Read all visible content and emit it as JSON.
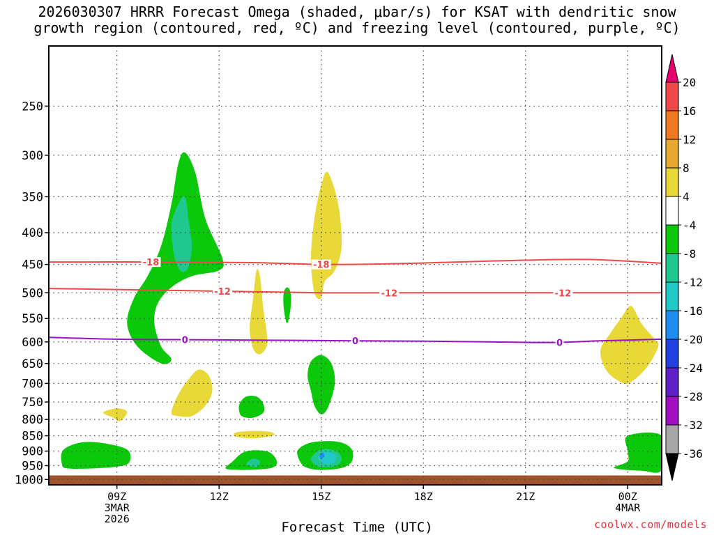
{
  "chart_data": {
    "type": "heatmap",
    "title": "2026030307 HRRR Forecast Omega (shaded, μbar/s) for KSAT with dendritic snow growth region (contoured, red, ºC) and freezing level (contoured, purple, ºC)",
    "title_lines": [
      "2026030307 HRRR Forecast Omega (shaded, μbar/s) for KSAT with dendritic snow",
      "growth region (contoured, red, ºC) and freezing level (contoured, purple, ºC)"
    ],
    "xlabel": "Forecast Time (UTC)",
    "ylabel": "",
    "x_units": "hours since 2026-03-03 07Z",
    "xlim": [
      0,
      18
    ],
    "ylim": [
      1020,
      200
    ],
    "y_ticks": [
      250,
      300,
      350,
      400,
      450,
      500,
      550,
      600,
      650,
      700,
      750,
      800,
      850,
      900,
      950,
      1000
    ],
    "x_ticks": [
      {
        "x": 2,
        "lines": [
          "09Z",
          "3MAR",
          "2026"
        ]
      },
      {
        "x": 5,
        "lines": [
          "12Z"
        ]
      },
      {
        "x": 8,
        "lines": [
          "15Z"
        ]
      },
      {
        "x": 11,
        "lines": [
          "18Z"
        ]
      },
      {
        "x": 14,
        "lines": [
          "21Z"
        ]
      },
      {
        "x": 17,
        "lines": [
          "00Z",
          "4MAR"
        ]
      }
    ],
    "grid": true,
    "colorbar": {
      "units": "μbar/s",
      "labels": [
        "20",
        "16",
        "12",
        "8",
        "4",
        "-4",
        "-8",
        "-12",
        "-16",
        "-20",
        "-24",
        "-28",
        "-32",
        "-36"
      ],
      "bins": [
        {
          "color": "#e8006e"
        },
        {
          "color": "#f04848"
        },
        {
          "color": "#f07820"
        },
        {
          "color": "#e8a830"
        },
        {
          "color": "#e8d838"
        },
        {
          "color": "#ffffff"
        },
        {
          "color": "#0bc80b"
        },
        {
          "color": "#20c890"
        },
        {
          "color": "#20c8c8"
        },
        {
          "color": "#1e8cf0"
        },
        {
          "color": "#2040e0"
        },
        {
          "color": "#6020c8"
        },
        {
          "color": "#a010c0"
        },
        {
          "color": "#a8a8a8"
        },
        {
          "color": "#000000"
        }
      ]
    },
    "contours": [
      {
        "name": "-18C isotherm",
        "color": "#f04848",
        "label": "-18",
        "x": [
          0,
          3,
          6,
          8,
          10,
          12,
          14,
          16,
          18
        ],
        "y": [
          446,
          446,
          447,
          450,
          449,
          446,
          443,
          442,
          448
        ],
        "label_x": [
          3.0,
          8.0
        ]
      },
      {
        "name": "-12C isotherm",
        "color": "#f04848",
        "label": "-12",
        "x": [
          0,
          2,
          5,
          8,
          11,
          14,
          16,
          18
        ],
        "y": [
          492,
          494,
          497,
          500,
          500,
          500,
          500,
          500
        ],
        "label_x": [
          5.1,
          10.0,
          15.1
        ]
      },
      {
        "name": "0C freezing level",
        "color": "#9a10c8",
        "label": "0",
        "x": [
          0,
          2,
          4,
          6,
          8,
          10,
          12,
          14,
          15,
          16,
          17,
          18
        ],
        "y": [
          590,
          594,
          595,
          596,
          597,
          598,
          599,
          601,
          601,
          598,
          596,
          594
        ],
        "label_x": [
          4.0,
          9.0,
          15.0
        ]
      }
    ],
    "terrain": {
      "color": "#a0522d",
      "pressure_top": 985
    },
    "shading": [
      {
        "level": "-4 to -8",
        "color": "#0bc80b",
        "points": [
          [
            3.3,
            650
          ],
          [
            2.6,
            610
          ],
          [
            2.3,
            560
          ],
          [
            2.5,
            510
          ],
          [
            2.9,
            470
          ],
          [
            3.3,
            420
          ],
          [
            3.6,
            360
          ],
          [
            3.8,
            310
          ],
          [
            4.0,
            297
          ],
          [
            4.3,
            320
          ],
          [
            4.6,
            380
          ],
          [
            5.1,
            440
          ],
          [
            5.0,
            460
          ],
          [
            4.2,
            470
          ],
          [
            3.6,
            490
          ],
          [
            3.2,
            520
          ],
          [
            3.1,
            560
          ],
          [
            3.3,
            610
          ],
          [
            3.6,
            640
          ]
        ]
      },
      {
        "level": "-8 to -12",
        "color": "#20c890",
        "points": [
          [
            3.6,
            390
          ],
          [
            3.8,
            360
          ],
          [
            4.0,
            350
          ],
          [
            4.1,
            380
          ],
          [
            4.2,
            420
          ],
          [
            4.1,
            455
          ],
          [
            3.9,
            462
          ],
          [
            3.7,
            440
          ]
        ]
      },
      {
        "level": "4 to 8",
        "color": "#e8d838",
        "points": [
          [
            7.8,
            500
          ],
          [
            7.7,
            440
          ],
          [
            7.8,
            380
          ],
          [
            8.0,
            335
          ],
          [
            8.2,
            320
          ],
          [
            8.5,
            360
          ],
          [
            8.6,
            420
          ],
          [
            8.4,
            460
          ],
          [
            8.1,
            480
          ],
          [
            8.0,
            510
          ]
        ]
      },
      {
        "level": "4 to 8",
        "color": "#e8d838",
        "points": [
          [
            6.0,
            615
          ],
          [
            5.9,
            570
          ],
          [
            6.0,
            510
          ],
          [
            6.1,
            460
          ],
          [
            6.2,
            470
          ],
          [
            6.3,
            530
          ],
          [
            6.4,
            580
          ],
          [
            6.4,
            610
          ],
          [
            6.2,
            628
          ]
        ]
      },
      {
        "level": "-4 to -8",
        "color": "#0bc80b",
        "points": [
          [
            7.0,
            490
          ],
          [
            7.1,
            500
          ],
          [
            7.1,
            530
          ],
          [
            7.0,
            560
          ],
          [
            6.9,
            530
          ],
          [
            6.9,
            500
          ]
        ]
      },
      {
        "level": "4 to 8",
        "color": "#e8d838",
        "points": [
          [
            3.6,
            780
          ],
          [
            3.8,
            730
          ],
          [
            4.1,
            690
          ],
          [
            4.4,
            665
          ],
          [
            4.7,
            680
          ],
          [
            4.8,
            720
          ],
          [
            4.6,
            760
          ],
          [
            4.2,
            790
          ],
          [
            3.8,
            790
          ]
        ]
      },
      {
        "level": "4 to 8",
        "color": "#e8d838",
        "points": [
          [
            1.6,
            780
          ],
          [
            2.0,
            768
          ],
          [
            2.3,
            778
          ],
          [
            2.1,
            805
          ],
          [
            1.9,
            795
          ]
        ]
      },
      {
        "level": "-4 to -8",
        "color": "#0bc80b",
        "points": [
          [
            7.7,
            720
          ],
          [
            7.6,
            680
          ],
          [
            7.7,
            645
          ],
          [
            8.0,
            630
          ],
          [
            8.3,
            650
          ],
          [
            8.4,
            700
          ],
          [
            8.2,
            765
          ],
          [
            8.0,
            785
          ],
          [
            7.8,
            760
          ]
        ]
      },
      {
        "level": "-4 to -8",
        "color": "#0bc80b",
        "points": [
          [
            5.6,
            780
          ],
          [
            5.6,
            755
          ],
          [
            5.8,
            735
          ],
          [
            6.1,
            735
          ],
          [
            6.3,
            755
          ],
          [
            6.3,
            780
          ],
          [
            6.0,
            795
          ],
          [
            5.7,
            792
          ]
        ]
      },
      {
        "level": "4 to 8",
        "color": "#e8d838",
        "points": [
          [
            5.5,
            840
          ],
          [
            6.0,
            835
          ],
          [
            6.5,
            838
          ],
          [
            6.6,
            848
          ],
          [
            6.1,
            858
          ],
          [
            5.5,
            853
          ]
        ]
      },
      {
        "level": "-4 to -8",
        "color": "#0bc80b",
        "points": [
          [
            0.4,
            950
          ],
          [
            0.4,
            900
          ],
          [
            0.8,
            875
          ],
          [
            1.3,
            870
          ],
          [
            1.9,
            880
          ],
          [
            2.3,
            895
          ],
          [
            2.4,
            920
          ],
          [
            2.3,
            945
          ],
          [
            1.9,
            955
          ],
          [
            1.2,
            960
          ],
          [
            0.6,
            960
          ]
        ]
      },
      {
        "level": "-4 to -8",
        "color": "#0bc80b",
        "points": [
          [
            5.2,
            960
          ],
          [
            5.4,
            935
          ],
          [
            5.7,
            905
          ],
          [
            6.1,
            897
          ],
          [
            6.5,
            905
          ],
          [
            6.7,
            935
          ],
          [
            6.6,
            955
          ],
          [
            6.3,
            962
          ],
          [
            5.7,
            965
          ]
        ]
      },
      {
        "level": "-8 to -12",
        "color": "#20c890",
        "points": [
          [
            5.8,
            945
          ],
          [
            6.0,
            925
          ],
          [
            6.2,
            935
          ],
          [
            6.1,
            955
          ]
        ]
      },
      {
        "level": "-4 to -8",
        "color": "#0bc80b",
        "points": [
          [
            7.4,
            940
          ],
          [
            7.3,
            900
          ],
          [
            7.6,
            875
          ],
          [
            8.1,
            867
          ],
          [
            8.6,
            872
          ],
          [
            8.9,
            895
          ],
          [
            8.9,
            935
          ],
          [
            8.6,
            958
          ],
          [
            8.0,
            965
          ],
          [
            7.6,
            958
          ]
        ]
      },
      {
        "level": "-8 to -12",
        "color": "#20c890",
        "points": [
          [
            7.7,
            925
          ],
          [
            7.9,
            900
          ],
          [
            8.2,
            893
          ],
          [
            8.5,
            905
          ],
          [
            8.6,
            930
          ],
          [
            8.4,
            952
          ],
          [
            8.0,
            955
          ],
          [
            7.8,
            945
          ]
        ]
      },
      {
        "level": "-12 to -16",
        "color": "#20c8c8",
        "points": [
          [
            7.9,
            920
          ],
          [
            8.1,
            903
          ],
          [
            8.4,
            912
          ],
          [
            8.4,
            935
          ],
          [
            8.2,
            945
          ],
          [
            8.0,
            940
          ]
        ]
      },
      {
        "level": "-16 to -20",
        "color": "#1e8cf0",
        "points": [
          [
            7.95,
            913
          ],
          [
            8.05,
            905
          ],
          [
            8.1,
            918
          ],
          [
            8.0,
            925
          ]
        ]
      },
      {
        "level": "4 to 8",
        "color": "#e8d838",
        "points": [
          [
            16.4,
            670
          ],
          [
            16.2,
            620
          ],
          [
            16.5,
            580
          ],
          [
            16.8,
            550
          ],
          [
            17.1,
            525
          ],
          [
            17.4,
            560
          ],
          [
            17.8,
            595
          ],
          [
            17.9,
            610
          ],
          [
            17.6,
            655
          ],
          [
            17.2,
            690
          ],
          [
            16.9,
            700
          ]
        ]
      },
      {
        "level": "-4 to -8",
        "color": "#0bc80b",
        "points": [
          [
            16.6,
            958
          ],
          [
            17.0,
            935
          ],
          [
            17.0,
            900
          ],
          [
            17.0,
            850
          ],
          [
            18.0,
            850
          ],
          [
            18.0,
            965
          ],
          [
            17.4,
            968
          ]
        ]
      }
    ]
  },
  "credit": "coolwx.com/models"
}
